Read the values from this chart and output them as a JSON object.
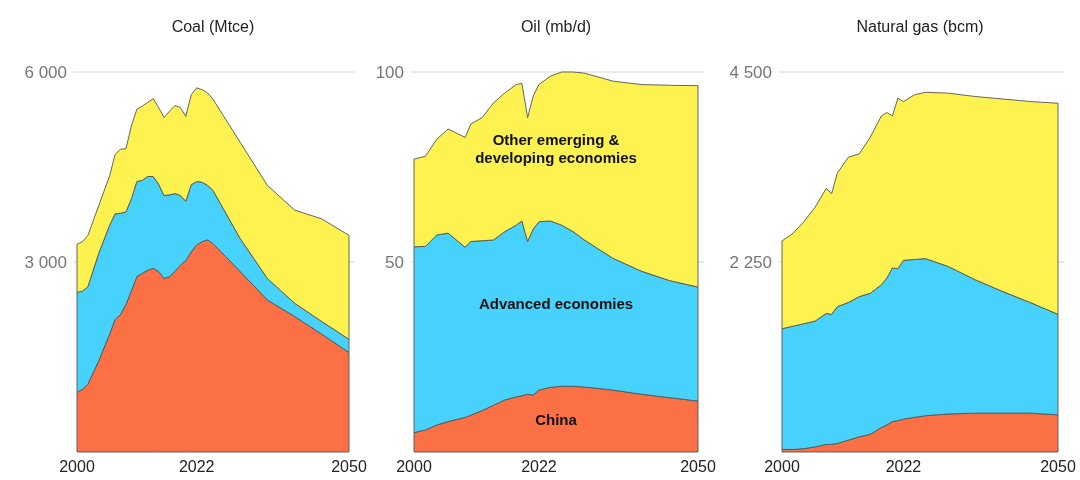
{
  "chart_data": [
    {
      "type": "area",
      "title": "Coal (Mtce)",
      "stacked": true,
      "grid": "y",
      "x": [
        2000,
        2001,
        2002,
        2004,
        2006,
        2007,
        2008,
        2009,
        2010,
        2011,
        2012,
        2013,
        2014,
        2015,
        2016,
        2017,
        2018,
        2019,
        2020,
        2021,
        2022,
        2023,
        2024,
        2025,
        2030,
        2035,
        2040,
        2045,
        2050
      ],
      "xlim": [
        2000,
        2050
      ],
      "xticks": [
        2000,
        2022,
        2050
      ],
      "ylim": [
        0,
        6000
      ],
      "yticks": [
        {
          "value": 3000,
          "label": "3 000"
        },
        {
          "value": 6000,
          "label": "6 000"
        }
      ],
      "series": [
        {
          "color": "#fb7145",
          "values": [
            940,
            990,
            1070,
            1440,
            1860,
            2090,
            2170,
            2330,
            2540,
            2770,
            2820,
            2870,
            2900,
            2850,
            2740,
            2770,
            2850,
            2950,
            3020,
            3160,
            3270,
            3320,
            3350,
            3290,
            2850,
            2400,
            2140,
            1860,
            1570
          ]
        },
        {
          "color": "#47d2fb",
          "values": [
            1580,
            1550,
            1540,
            1700,
            1720,
            1670,
            1600,
            1460,
            1460,
            1500,
            1470,
            1480,
            1450,
            1380,
            1310,
            1290,
            1230,
            1100,
            940,
            1060,
            1000,
            940,
            860,
            840,
            520,
            340,
            210,
            200,
            210
          ]
        },
        {
          "color": "#fdf250",
          "values": [
            760,
            780,
            810,
            750,
            780,
            940,
            1010,
            1000,
            1150,
            1140,
            1170,
            1170,
            1230,
            1210,
            1230,
            1320,
            1390,
            1390,
            1340,
            1420,
            1480,
            1460,
            1460,
            1440,
            1520,
            1470,
            1470,
            1620,
            1640
          ]
        }
      ]
    },
    {
      "type": "area",
      "title": "Oil (mb/d)",
      "stacked": true,
      "grid": "y",
      "x": [
        2000,
        2002,
        2004,
        2006,
        2009,
        2010,
        2012,
        2014,
        2016,
        2018,
        2019,
        2020,
        2021,
        2022,
        2024,
        2026,
        2028,
        2030,
        2035,
        2040,
        2045,
        2050
      ],
      "xlim": [
        2000,
        2050
      ],
      "xticks": [
        2000,
        2022,
        2050
      ],
      "ylim": [
        0,
        100
      ],
      "yticks": [
        50,
        100
      ],
      "series": [
        {
          "name": "China",
          "color": "#fb7145",
          "values": [
            5.1,
            5.8,
            7.1,
            8.0,
            9.1,
            9.7,
            10.9,
            12.3,
            13.7,
            14.5,
            14.8,
            15.2,
            15.0,
            16.3,
            17.0,
            17.3,
            17.3,
            17.1,
            16.3,
            15.2,
            14.3,
            13.4
          ]
        },
        {
          "name": "Advanced economies",
          "color": "#47d2fb",
          "values": [
            48.9,
            48.3,
            50.0,
            49.6,
            44.8,
            45.7,
            44.7,
            43.5,
            44.3,
            45.2,
            46.0,
            40.2,
            43.7,
            44.3,
            43.8,
            42.4,
            40.7,
            38.7,
            34.7,
            32.4,
            30.8,
            30.0
          ]
        },
        {
          "name": "Other emerging & developing economies",
          "color": "#fdf250",
          "values": [
            23.1,
            23.7,
            25.2,
            27.4,
            28.9,
            30.9,
            32.4,
            36.1,
            36.5,
            37.0,
            36.2,
            32.6,
            35.0,
            36.1,
            38.1,
            40.3,
            42.0,
            43.9,
            46.6,
            49.1,
            51.4,
            53.0
          ]
        }
      ]
    },
    {
      "type": "area",
      "title": "Natural gas (bcm)",
      "stacked": true,
      "grid": "y",
      "x": [
        2000,
        2002,
        2004,
        2006,
        2008,
        2009,
        2010,
        2012,
        2014,
        2016,
        2018,
        2019,
        2020,
        2021,
        2022,
        2024,
        2026,
        2030,
        2035,
        2040,
        2045,
        2050
      ],
      "xlim": [
        2000,
        2050
      ],
      "xticks": [
        2000,
        2022,
        2050
      ],
      "ylim": [
        0,
        4500
      ],
      "yticks": [
        {
          "value": 2250,
          "label": "2 250"
        },
        {
          "value": 4500,
          "label": "4 500"
        }
      ],
      "series": [
        {
          "color": "#fb7145",
          "values": [
            30,
            30,
            40,
            60,
            90,
            90,
            100,
            140,
            180,
            210,
            290,
            320,
            360,
            370,
            390,
            410,
            430,
            450,
            460,
            460,
            460,
            440
          ]
        },
        {
          "color": "#47d2fb",
          "values": [
            1430,
            1460,
            1480,
            1490,
            1550,
            1540,
            1620,
            1630,
            1660,
            1670,
            1690,
            1740,
            1820,
            1800,
            1880,
            1870,
            1860,
            1750,
            1580,
            1440,
            1310,
            1190
          ]
        },
        {
          "color": "#fdf250",
          "values": [
            1040,
            1100,
            1210,
            1350,
            1480,
            1430,
            1580,
            1720,
            1690,
            1850,
            2000,
            1960,
            1800,
            2020,
            1880,
            1950,
            1970,
            2050,
            2170,
            2280,
            2380,
            2500
          ]
        }
      ]
    }
  ]
}
